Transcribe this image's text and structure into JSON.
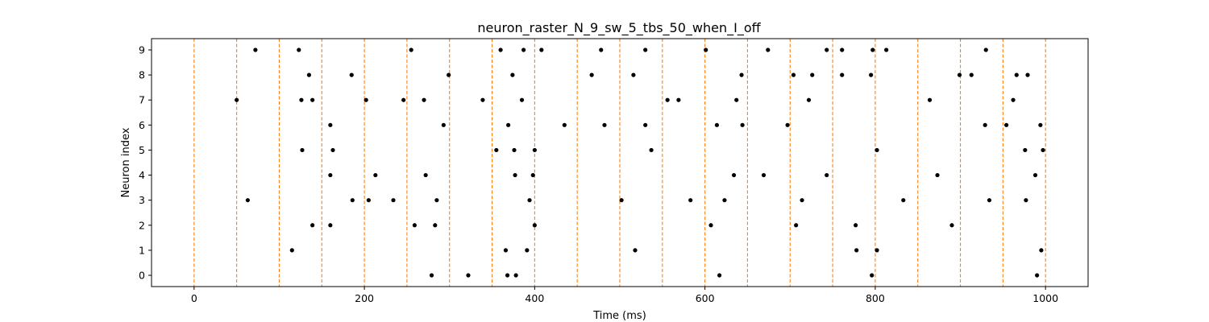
{
  "chart_data": {
    "type": "scatter",
    "title": "neuron_raster_N_9_sw_5_tbs_50_when_I_off",
    "xlabel": "Time (ms)",
    "ylabel": "Neuron index",
    "xlim": [
      -50,
      1050
    ],
    "ylim": [
      -0.45,
      9.45
    ],
    "x_ticks": [
      0,
      200,
      400,
      600,
      800,
      1000
    ],
    "y_ticks": [
      0,
      1,
      2,
      3,
      4,
      5,
      6,
      7,
      8,
      9
    ],
    "marker_color": "#000000",
    "vline_color": "#ff7f0e",
    "vlines": [
      0,
      50,
      100,
      150,
      200,
      250,
      300,
      350,
      400,
      450,
      500,
      550,
      600,
      650,
      700,
      750,
      800,
      850,
      900,
      950,
      1000
    ],
    "spikes": [
      {
        "neuron": 9,
        "times": [
          72,
          123,
          255,
          360,
          387,
          408,
          478,
          530,
          601,
          674,
          743,
          761,
          797,
          813,
          930
        ]
      },
      {
        "neuron": 8,
        "times": [
          135,
          185,
          299,
          374,
          467,
          516,
          643,
          704,
          726,
          761,
          795,
          899,
          913,
          966,
          979
        ]
      },
      {
        "neuron": 7,
        "times": [
          50,
          126,
          139,
          202,
          246,
          270,
          339,
          385,
          556,
          569,
          637,
          722,
          864,
          962
        ]
      },
      {
        "neuron": 6,
        "times": [
          160,
          293,
          369,
          435,
          482,
          530,
          614,
          644,
          697,
          929,
          954,
          994
        ]
      },
      {
        "neuron": 5,
        "times": [
          127,
          163,
          355,
          376,
          400,
          537,
          802,
          976,
          997
        ]
      },
      {
        "neuron": 4,
        "times": [
          160,
          213,
          272,
          377,
          398,
          634,
          669,
          743,
          873,
          988
        ]
      },
      {
        "neuron": 3,
        "times": [
          63,
          186,
          205,
          234,
          285,
          394,
          502,
          583,
          623,
          714,
          833,
          934,
          977
        ]
      },
      {
        "neuron": 2,
        "times": [
          139,
          160,
          259,
          283,
          400,
          607,
          707,
          777,
          890
        ]
      },
      {
        "neuron": 1,
        "times": [
          115,
          366,
          391,
          518,
          778,
          802,
          995
        ]
      },
      {
        "neuron": 0,
        "times": [
          279,
          322,
          368,
          378,
          617,
          796,
          990
        ]
      }
    ]
  }
}
